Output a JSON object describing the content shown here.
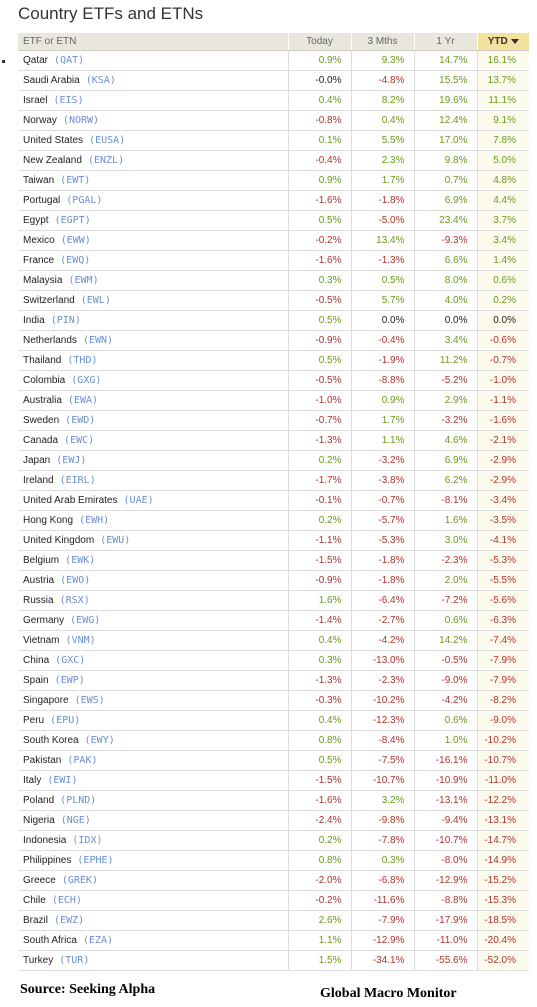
{
  "title": "Country ETFs and ETNs",
  "header": {
    "name": "ETF or ETN",
    "today": "Today",
    "mths3": "3 Mths",
    "yr1": "1 Yr",
    "ytd": "YTD"
  },
  "footer": {
    "source": "Source:  Seeking Alpha",
    "brand": "Global Macro Monitor"
  },
  "colors": {
    "positive": "#6a9a1c",
    "negative": "#b0332d",
    "ticker": "#6b8ed1",
    "ytd_header": "#f3e29d"
  },
  "chart_data": {
    "type": "table",
    "columns": [
      "ETF or ETN",
      "Today",
      "3 Mths",
      "1 Yr",
      "YTD"
    ],
    "sort": {
      "column": "YTD",
      "direction": "descending"
    },
    "rows": [
      {
        "country": "Qatar",
        "ticker": "QAT",
        "today": "0.9%",
        "m3": "9.3%",
        "y1": "14.7%",
        "ytd": "16.1%"
      },
      {
        "country": "Saudi Arabia",
        "ticker": "KSA",
        "today": "-0.0%",
        "m3": "-4.8%",
        "y1": "15.5%",
        "ytd": "13.7%"
      },
      {
        "country": "Israel",
        "ticker": "EIS",
        "today": "0.4%",
        "m3": "8.2%",
        "y1": "19.6%",
        "ytd": "11.1%"
      },
      {
        "country": "Norway",
        "ticker": "NORW",
        "today": "-0.8%",
        "m3": "0.4%",
        "y1": "12.4%",
        "ytd": "9.1%"
      },
      {
        "country": "United States",
        "ticker": "EUSA",
        "today": "0.1%",
        "m3": "5.5%",
        "y1": "17.0%",
        "ytd": "7.8%"
      },
      {
        "country": "New Zealand",
        "ticker": "ENZL",
        "today": "-0.4%",
        "m3": "2.3%",
        "y1": "9.8%",
        "ytd": "5.0%"
      },
      {
        "country": "Taiwan",
        "ticker": "EWT",
        "today": "0.9%",
        "m3": "1.7%",
        "y1": "0.7%",
        "ytd": "4.8%"
      },
      {
        "country": "Portugal",
        "ticker": "PGAL",
        "today": "-1.6%",
        "m3": "-1.8%",
        "y1": "6.9%",
        "ytd": "4.4%"
      },
      {
        "country": "Egypt",
        "ticker": "EGPT",
        "today": "0.5%",
        "m3": "-5.0%",
        "y1": "23.4%",
        "ytd": "3.7%"
      },
      {
        "country": "Mexico",
        "ticker": "EWW",
        "today": "-0.2%",
        "m3": "13.4%",
        "y1": "-9.3%",
        "ytd": "3.4%"
      },
      {
        "country": "France",
        "ticker": "EWQ",
        "today": "-1.6%",
        "m3": "-1.3%",
        "y1": "6.6%",
        "ytd": "1.4%"
      },
      {
        "country": "Malaysia",
        "ticker": "EWM",
        "today": "0.3%",
        "m3": "0.5%",
        "y1": "8.0%",
        "ytd": "0.6%"
      },
      {
        "country": "Switzerland",
        "ticker": "EWL",
        "today": "-0.5%",
        "m3": "5.7%",
        "y1": "4.0%",
        "ytd": "0.2%"
      },
      {
        "country": "India",
        "ticker": "PIN",
        "today": "0.5%",
        "m3": "0.0%",
        "y1": "0.0%",
        "ytd": "0.0%"
      },
      {
        "country": "Netherlands",
        "ticker": "EWN",
        "today": "-0.9%",
        "m3": "-0.4%",
        "y1": "3.4%",
        "ytd": "-0.6%"
      },
      {
        "country": "Thailand",
        "ticker": "THD",
        "today": "0.5%",
        "m3": "-1.9%",
        "y1": "11.2%",
        "ytd": "-0.7%"
      },
      {
        "country": "Colombia",
        "ticker": "GXG",
        "today": "-0.5%",
        "m3": "-8.8%",
        "y1": "-5.2%",
        "ytd": "-1.0%"
      },
      {
        "country": "Australia",
        "ticker": "EWA",
        "today": "-1.0%",
        "m3": "0.9%",
        "y1": "2.9%",
        "ytd": "-1.1%"
      },
      {
        "country": "Sweden",
        "ticker": "EWD",
        "today": "-0.7%",
        "m3": "1.7%",
        "y1": "-3.2%",
        "ytd": "-1.6%"
      },
      {
        "country": "Canada",
        "ticker": "EWC",
        "today": "-1.3%",
        "m3": "1.1%",
        "y1": "4.6%",
        "ytd": "-2.1%"
      },
      {
        "country": "Japan",
        "ticker": "EWJ",
        "today": "0.2%",
        "m3": "-3.2%",
        "y1": "6.9%",
        "ytd": "-2.9%"
      },
      {
        "country": "Ireland",
        "ticker": "EIRL",
        "today": "-1.7%",
        "m3": "-3.8%",
        "y1": "6.2%",
        "ytd": "-2.9%"
      },
      {
        "country": "United Arab Emirates",
        "ticker": "UAE",
        "today": "-0.1%",
        "m3": "-0.7%",
        "y1": "-8.1%",
        "ytd": "-3.4%"
      },
      {
        "country": "Hong Kong",
        "ticker": "EWH",
        "today": "0.2%",
        "m3": "-5.7%",
        "y1": "1.6%",
        "ytd": "-3.5%"
      },
      {
        "country": "United Kingdom",
        "ticker": "EWU",
        "today": "-1.1%",
        "m3": "-5.3%",
        "y1": "3.0%",
        "ytd": "-4.1%"
      },
      {
        "country": "Belgium",
        "ticker": "EWK",
        "today": "-1.5%",
        "m3": "-1.8%",
        "y1": "-2.3%",
        "ytd": "-5.3%"
      },
      {
        "country": "Austria",
        "ticker": "EWO",
        "today": "-0.9%",
        "m3": "-1.8%",
        "y1": "2.0%",
        "ytd": "-5.5%"
      },
      {
        "country": "Russia",
        "ticker": "RSX",
        "today": "1.6%",
        "m3": "-6.4%",
        "y1": "-7.2%",
        "ytd": "-5.6%"
      },
      {
        "country": "Germany",
        "ticker": "EWG",
        "today": "-1.4%",
        "m3": "-2.7%",
        "y1": "0.6%",
        "ytd": "-6.3%"
      },
      {
        "country": "Vietnam",
        "ticker": "VNM",
        "today": "0.4%",
        "m3": "-4.2%",
        "y1": "14.2%",
        "ytd": "-7.4%"
      },
      {
        "country": "China",
        "ticker": "GXC",
        "today": "0.3%",
        "m3": "-13.0%",
        "y1": "-0.5%",
        "ytd": "-7.9%"
      },
      {
        "country": "Spain",
        "ticker": "EWP",
        "today": "-1.3%",
        "m3": "-2.3%",
        "y1": "-9.0%",
        "ytd": "-7.9%"
      },
      {
        "country": "Singapore",
        "ticker": "EWS",
        "today": "-0.3%",
        "m3": "-10.2%",
        "y1": "-4.2%",
        "ytd": "-8.2%"
      },
      {
        "country": "Peru",
        "ticker": "EPU",
        "today": "0.4%",
        "m3": "-12.3%",
        "y1": "0.6%",
        "ytd": "-9.0%"
      },
      {
        "country": "South Korea",
        "ticker": "EWY",
        "today": "0.8%",
        "m3": "-8.4%",
        "y1": "1.0%",
        "ytd": "-10.2%"
      },
      {
        "country": "Pakistan",
        "ticker": "PAK",
        "today": "0.5%",
        "m3": "-7.5%",
        "y1": "-16.1%",
        "ytd": "-10.7%"
      },
      {
        "country": "Italy",
        "ticker": "EWI",
        "today": "-1.5%",
        "m3": "-10.7%",
        "y1": "-10.9%",
        "ytd": "-11.0%"
      },
      {
        "country": "Poland",
        "ticker": "PLND",
        "today": "-1.6%",
        "m3": "3.2%",
        "y1": "-13.1%",
        "ytd": "-12.2%"
      },
      {
        "country": "Nigeria",
        "ticker": "NGE",
        "today": "-2.4%",
        "m3": "-9.8%",
        "y1": "-9.4%",
        "ytd": "-13.1%"
      },
      {
        "country": "Indonesia",
        "ticker": "IDX",
        "today": "0.2%",
        "m3": "-7.8%",
        "y1": "-10.7%",
        "ytd": "-14.7%"
      },
      {
        "country": "Philippines",
        "ticker": "EPHE",
        "today": "0.8%",
        "m3": "0.3%",
        "y1": "-8.0%",
        "ytd": "-14.9%"
      },
      {
        "country": "Greece",
        "ticker": "GREK",
        "today": "-2.0%",
        "m3": "-6.8%",
        "y1": "-12.9%",
        "ytd": "-15.2%"
      },
      {
        "country": "Chile",
        "ticker": "ECH",
        "today": "-0.2%",
        "m3": "-11.6%",
        "y1": "-8.8%",
        "ytd": "-15.3%"
      },
      {
        "country": "Brazil",
        "ticker": "EWZ",
        "today": "2.6%",
        "m3": "-7.9%",
        "y1": "-17.9%",
        "ytd": "-18.5%"
      },
      {
        "country": "South Africa",
        "ticker": "EZA",
        "today": "1.1%",
        "m3": "-12.9%",
        "y1": "-11.0%",
        "ytd": "-20.4%"
      },
      {
        "country": "Turkey",
        "ticker": "TUR",
        "today": "1.5%",
        "m3": "-34.1%",
        "y1": "-55.6%",
        "ytd": "-52.0%"
      }
    ]
  }
}
